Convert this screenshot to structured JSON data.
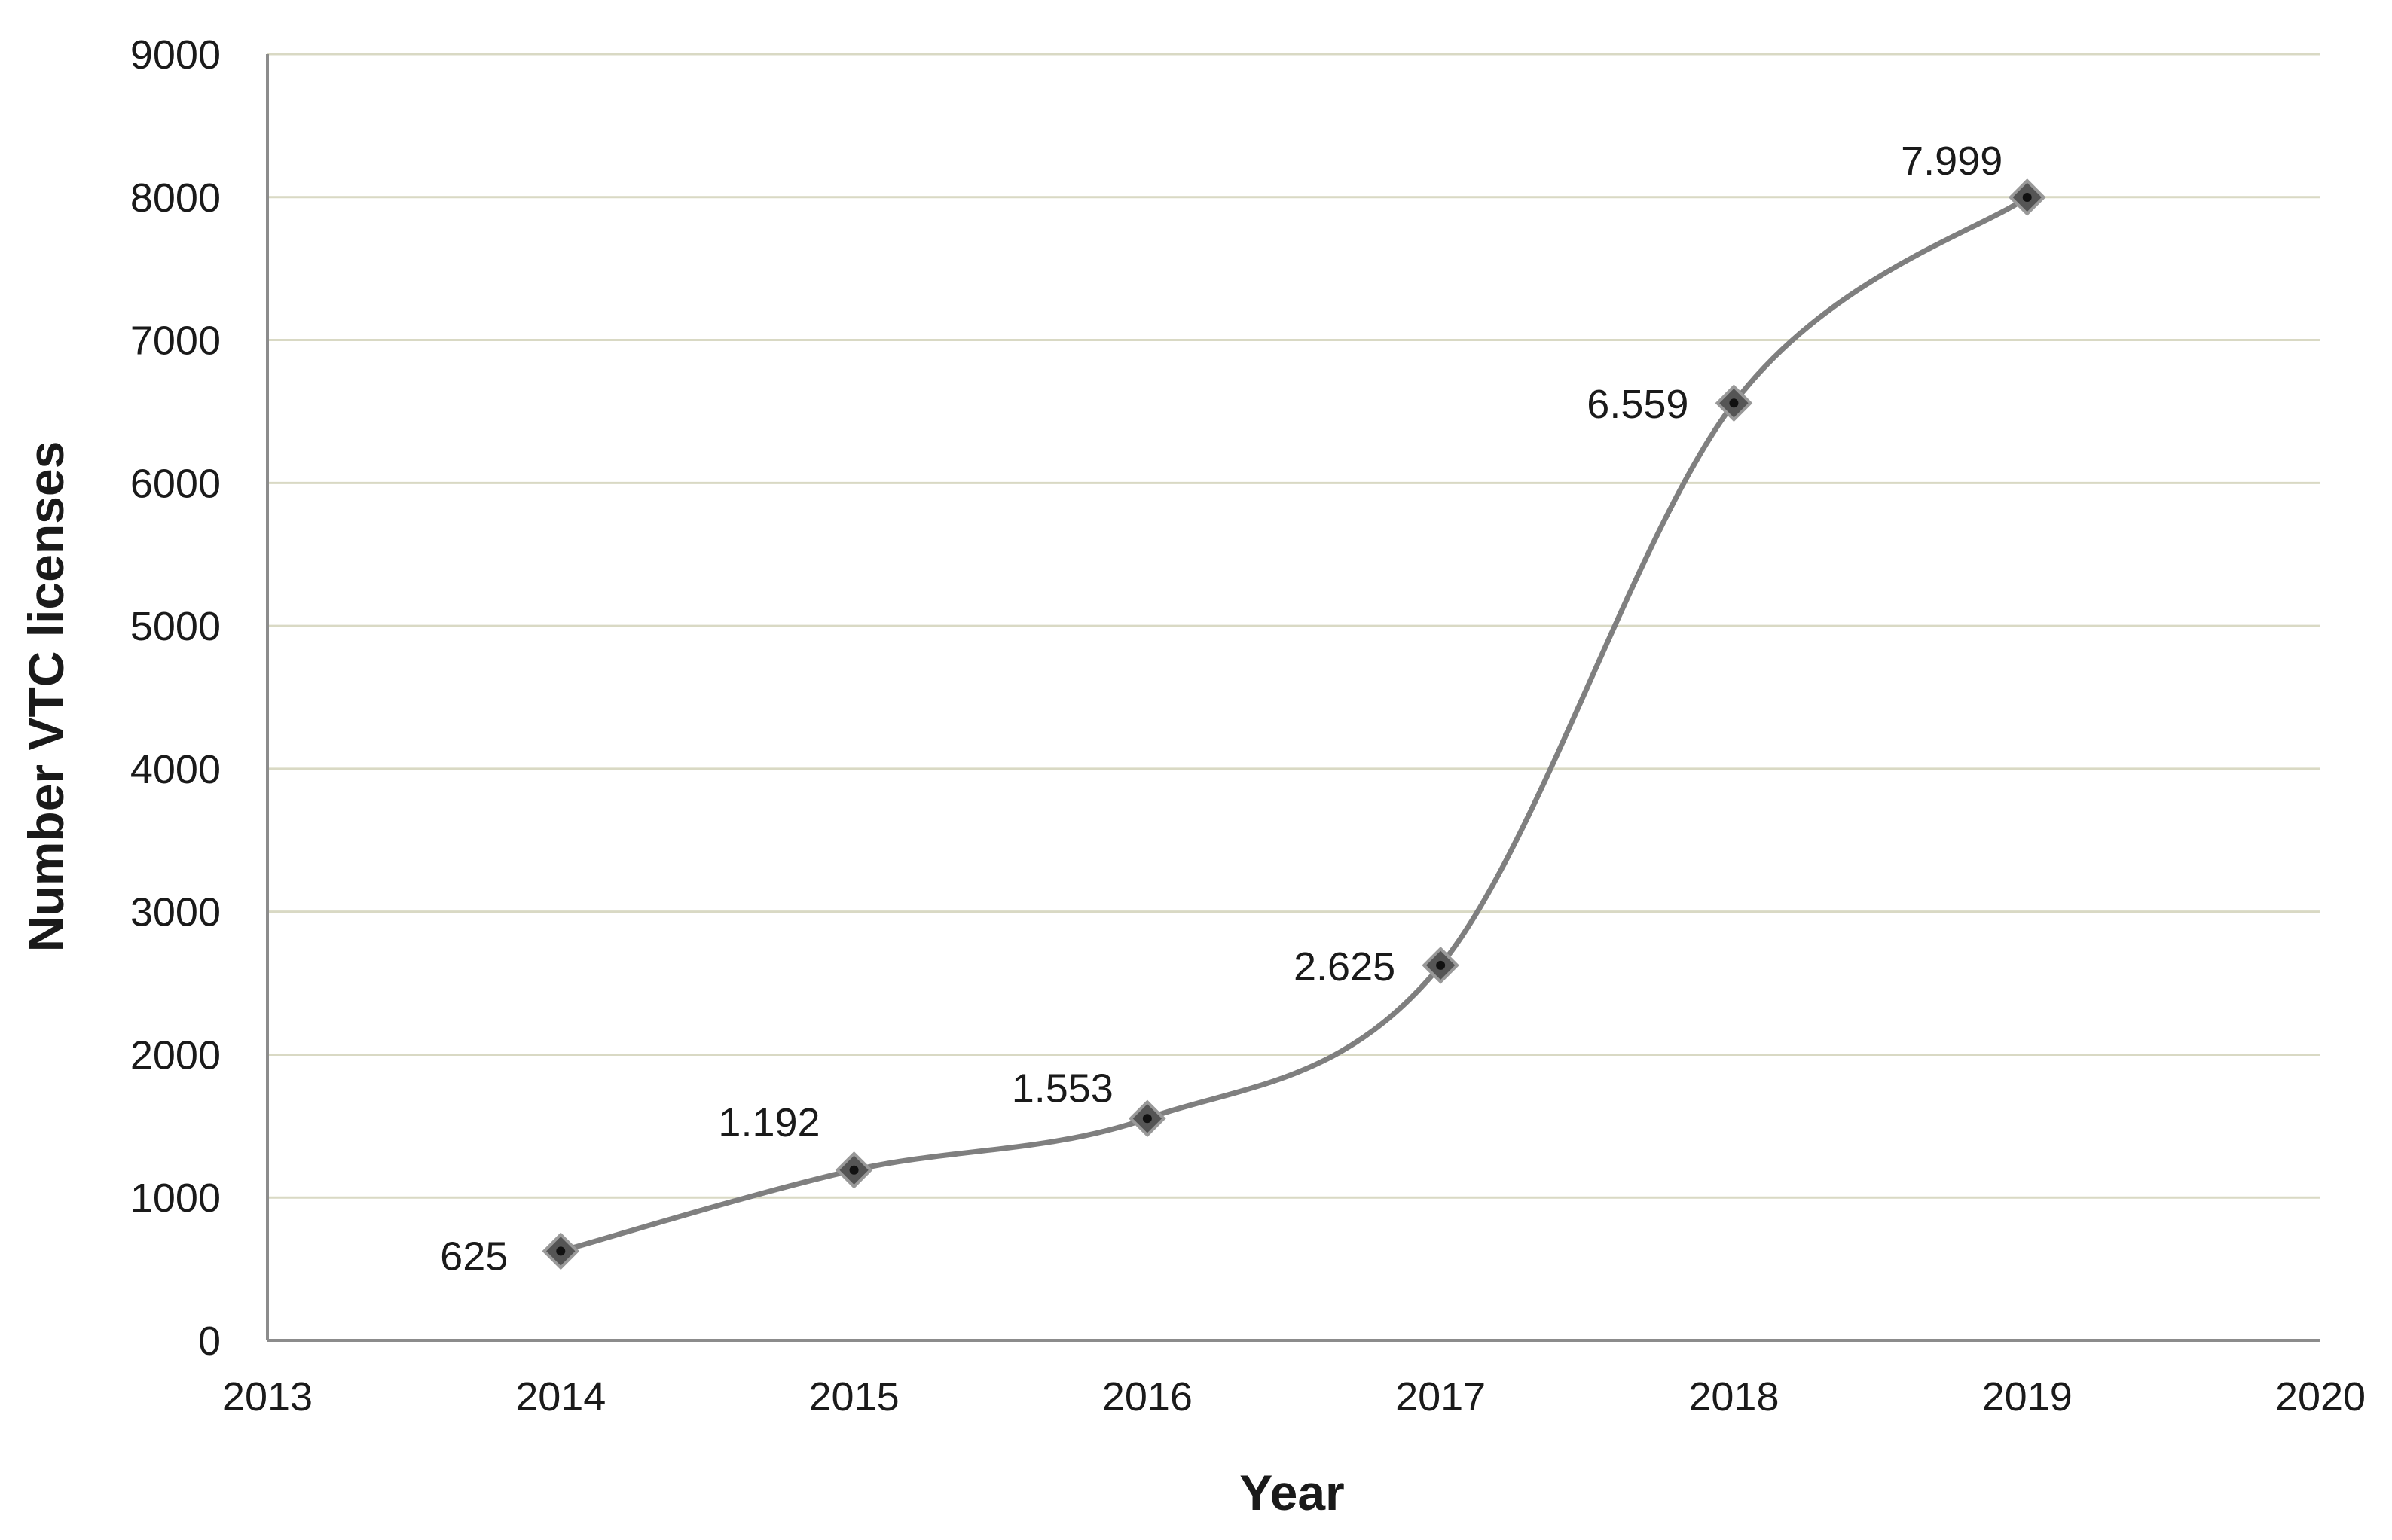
{
  "chart_data": {
    "type": "line",
    "title": "",
    "xlabel": "Year",
    "ylabel": "Number VTC licenses",
    "xlim": [
      2013,
      2020
    ],
    "ylim": [
      0,
      9000
    ],
    "x_ticks": [
      "2013",
      "2014",
      "2015",
      "2016",
      "2017",
      "2018",
      "2019",
      "2020"
    ],
    "y_ticks": [
      "0",
      "1000",
      "2000",
      "3000",
      "4000",
      "5000",
      "6000",
      "7000",
      "8000",
      "9000"
    ],
    "grid": "horizontal",
    "legend": "none",
    "smooth": true,
    "series": [
      {
        "x": [
          2014,
          2015,
          2016,
          2017,
          2018,
          2019
        ],
        "values": [
          625,
          1192,
          1553,
          2625,
          6559,
          7999
        ],
        "labels": [
          "625",
          "1.192",
          "1.553",
          "2.625",
          "6.559",
          "7.999"
        ],
        "color": "#7f7f7f",
        "marker": "diamond"
      }
    ],
    "colors": {
      "grid": "#d9d9c4",
      "axis": "#8c8c8c",
      "line": "#7f7f7f",
      "marker": "#555555"
    }
  }
}
